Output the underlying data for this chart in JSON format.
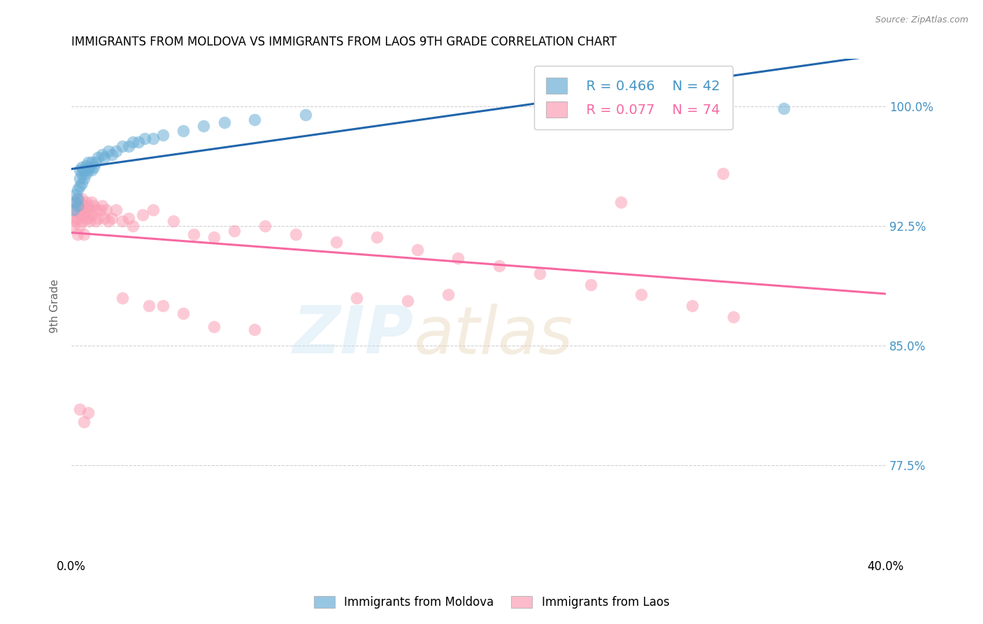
{
  "title": "IMMIGRANTS FROM MOLDOVA VS IMMIGRANTS FROM LAOS 9TH GRADE CORRELATION CHART",
  "source": "Source: ZipAtlas.com",
  "ylabel_label": "9th Grade",
  "ytick_labels": [
    "77.5%",
    "85.0%",
    "92.5%",
    "100.0%"
  ],
  "ytick_values": [
    0.775,
    0.85,
    0.925,
    1.0
  ],
  "xlim": [
    0.0,
    0.4
  ],
  "ylim": [
    0.72,
    1.03
  ],
  "moldova_color": "#6baed6",
  "laos_color": "#fa9fb5",
  "moldova_line_color": "#2166ac",
  "laos_line_color": "#f768a1",
  "legend_color_moldova": "#6baed6",
  "legend_color_laos": "#fa9fb5",
  "moldova_x": [
    0.001,
    0.002,
    0.002,
    0.003,
    0.003,
    0.003,
    0.004,
    0.004,
    0.004,
    0.005,
    0.005,
    0.005,
    0.006,
    0.006,
    0.007,
    0.007,
    0.008,
    0.008,
    0.009,
    0.01,
    0.01,
    0.011,
    0.012,
    0.013,
    0.015,
    0.016,
    0.018,
    0.02,
    0.022,
    0.025,
    0.028,
    0.03,
    0.033,
    0.036,
    0.04,
    0.045,
    0.055,
    0.065,
    0.075,
    0.09,
    0.115,
    0.35
  ],
  "moldova_y": [
    0.935,
    0.94,
    0.945,
    0.938,
    0.942,
    0.948,
    0.95,
    0.955,
    0.96,
    0.952,
    0.958,
    0.962,
    0.955,
    0.96,
    0.958,
    0.963,
    0.96,
    0.965,
    0.962,
    0.96,
    0.965,
    0.962,
    0.965,
    0.968,
    0.97,
    0.968,
    0.972,
    0.97,
    0.972,
    0.975,
    0.975,
    0.978,
    0.978,
    0.98,
    0.98,
    0.982,
    0.985,
    0.988,
    0.99,
    0.992,
    0.995,
    0.999
  ],
  "laos_x": [
    0.001,
    0.001,
    0.002,
    0.002,
    0.002,
    0.003,
    0.003,
    0.003,
    0.003,
    0.004,
    0.004,
    0.004,
    0.004,
    0.005,
    0.005,
    0.005,
    0.006,
    0.006,
    0.006,
    0.007,
    0.007,
    0.007,
    0.008,
    0.008,
    0.009,
    0.009,
    0.01,
    0.01,
    0.011,
    0.012,
    0.012,
    0.013,
    0.014,
    0.015,
    0.016,
    0.017,
    0.018,
    0.02,
    0.022,
    0.025,
    0.028,
    0.03,
    0.035,
    0.04,
    0.05,
    0.06,
    0.07,
    0.08,
    0.095,
    0.11,
    0.13,
    0.15,
    0.17,
    0.19,
    0.21,
    0.23,
    0.255,
    0.28,
    0.305,
    0.325,
    0.14,
    0.165,
    0.185,
    0.32,
    0.09,
    0.055,
    0.045,
    0.025,
    0.038,
    0.07,
    0.008,
    0.006,
    0.004,
    0.27
  ],
  "laos_y": [
    0.93,
    0.925,
    0.94,
    0.935,
    0.928,
    0.93,
    0.942,
    0.935,
    0.92,
    0.94,
    0.938,
    0.932,
    0.925,
    0.935,
    0.942,
    0.928,
    0.938,
    0.932,
    0.92,
    0.935,
    0.94,
    0.93,
    0.938,
    0.93,
    0.935,
    0.928,
    0.94,
    0.932,
    0.938,
    0.935,
    0.928,
    0.93,
    0.935,
    0.938,
    0.93,
    0.935,
    0.928,
    0.93,
    0.935,
    0.928,
    0.93,
    0.925,
    0.932,
    0.935,
    0.928,
    0.92,
    0.918,
    0.922,
    0.925,
    0.92,
    0.915,
    0.918,
    0.91,
    0.905,
    0.9,
    0.895,
    0.888,
    0.882,
    0.875,
    0.868,
    0.88,
    0.878,
    0.882,
    0.958,
    0.86,
    0.87,
    0.875,
    0.88,
    0.875,
    0.862,
    0.808,
    0.802,
    0.81,
    0.94
  ]
}
